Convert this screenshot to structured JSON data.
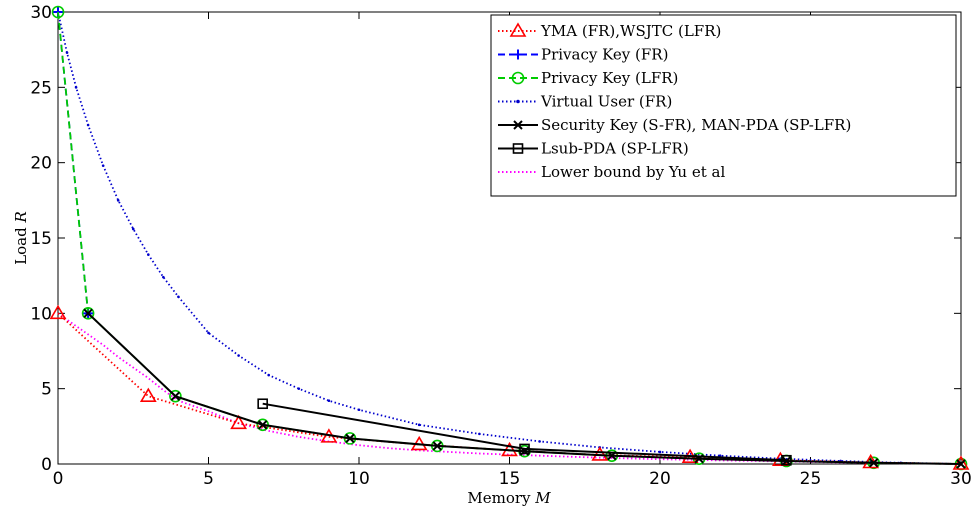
{
  "chart_data": {
    "type": "line",
    "xlabel": "Memory",
    "xlabel_var": "M",
    "ylabel": "Load",
    "ylabel_var": "R",
    "xlim": [
      0,
      30
    ],
    "ylim": [
      0,
      30
    ],
    "xticks": [
      0,
      5,
      10,
      15,
      20,
      25,
      30
    ],
    "yticks": [
      0,
      5,
      10,
      15,
      20,
      25,
      30
    ],
    "grid": false,
    "legend_position": "top-right",
    "series": [
      {
        "name": "YMA (FR),WSJTC (LFR)",
        "color": "#ff0000",
        "line": "dotted",
        "marker": "triangle",
        "x": [
          0,
          3,
          6,
          9,
          12,
          15,
          18,
          21,
          24,
          27,
          30
        ],
        "y": [
          10,
          4.5,
          2.7,
          1.8,
          1.3,
          0.9,
          0.6,
          0.45,
          0.25,
          0.1,
          0
        ]
      },
      {
        "name": "Privacy Key (FR)",
        "color": "#0000ff",
        "line": "dashed",
        "marker": "plus",
        "x": [
          0,
          1
        ],
        "y": [
          30,
          10
        ]
      },
      {
        "name": "Privacy Key (LFR)",
        "color": "#00cc00",
        "line": "dashed",
        "marker": "circle",
        "x": [
          0,
          1,
          3.9,
          6.8,
          9.7,
          12.6,
          15.5,
          18.4,
          21.3,
          24.2,
          27.1,
          30
        ],
        "y": [
          30,
          10,
          4.5,
          2.6,
          1.7,
          1.2,
          0.85,
          0.55,
          0.35,
          0.2,
          0.08,
          0
        ]
      },
      {
        "name": "Virtual User (FR)",
        "color": "#0000cc",
        "line": "dotted",
        "marker": "dot",
        "x": [
          0,
          0.3,
          0.6,
          1,
          1.5,
          2,
          2.5,
          3,
          3.5,
          4,
          5,
          6,
          7,
          8,
          9,
          10,
          12,
          14,
          16,
          18,
          20,
          22,
          24,
          26,
          28,
          30
        ],
        "y": [
          30,
          27.3,
          25,
          22.5,
          19.8,
          17.5,
          15.6,
          13.9,
          12.4,
          11.1,
          8.7,
          7.2,
          5.9,
          5,
          4.2,
          3.6,
          2.6,
          2,
          1.5,
          1.1,
          0.8,
          0.55,
          0.35,
          0.2,
          0.08,
          0
        ]
      },
      {
        "name": "Security Key (S-FR), MAN-PDA (SP-LFR)",
        "color": "#000000",
        "line": "solid",
        "marker": "x",
        "x": [
          1,
          3.9,
          6.8,
          9.7,
          12.6,
          15.5,
          18.4,
          21.3,
          24.2,
          27.1,
          30
        ],
        "y": [
          10,
          4.5,
          2.6,
          1.7,
          1.2,
          0.85,
          0.55,
          0.35,
          0.2,
          0.08,
          0
        ]
      },
      {
        "name": "Lsub-PDA (SP-LFR)",
        "color": "#000000",
        "line": "solid",
        "marker": "square",
        "x": [
          6.8,
          15.5,
          24.2
        ],
        "y": [
          4,
          1,
          0.25
        ]
      },
      {
        "name": "Lower bound by Yu et al",
        "color": "#ff00ff",
        "line": "dotted",
        "marker": "none",
        "x": [
          0,
          0.5,
          1,
          1.5,
          2,
          2.5,
          3,
          3.5,
          4,
          5,
          6,
          7,
          8,
          9,
          10,
          11,
          12,
          14,
          16,
          18,
          20,
          22,
          24,
          26,
          28,
          30
        ],
        "y": [
          10,
          9.3,
          8.6,
          7.9,
          7.1,
          6.4,
          5.7,
          4.9,
          4.2,
          3.5,
          2.7,
          2.2,
          1.8,
          1.5,
          1.25,
          1.05,
          0.9,
          0.7,
          0.55,
          0.42,
          0.32,
          0.24,
          0.17,
          0.1,
          0.05,
          0
        ]
      }
    ]
  }
}
